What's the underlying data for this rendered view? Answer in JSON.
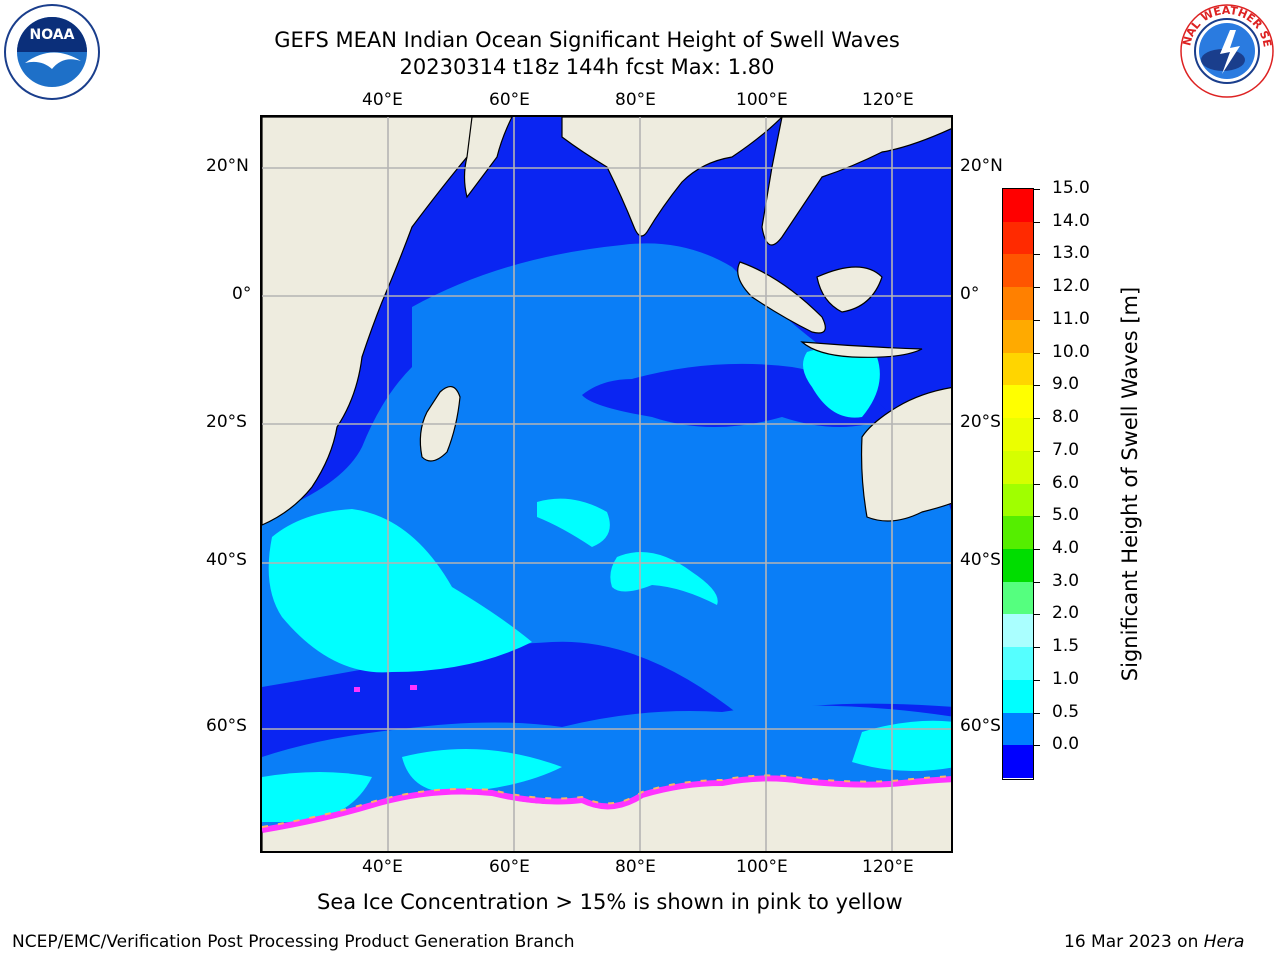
{
  "title": {
    "line1": "GEFS MEAN Indian Ocean Significant Height of Swell Waves",
    "line2": "20230314 t18z 144h fcst   Max: 1.80"
  },
  "map": {
    "projection": "cylindrical",
    "lon_ticks": [
      "40°E",
      "60°E",
      "80°E",
      "100°E",
      "120°E"
    ],
    "lat_ticks": [
      "20°N",
      "0°",
      "20°S",
      "40°S",
      "60°S"
    ],
    "land_color": "#eeecdf",
    "sea_ice_colors": [
      "#ff33ff",
      "#ffb266",
      "#ffff66"
    ],
    "max_value": 1.8
  },
  "colorbar": {
    "title": "Significant Height of Swell Waves [m]",
    "labels": [
      "15.0",
      "14.0",
      "13.0",
      "12.0",
      "11.0",
      "10.0",
      "9.0",
      "8.0",
      "7.0",
      "6.0",
      "5.0",
      "4.0",
      "3.0",
      "2.0",
      "1.5",
      "1.0",
      "0.5",
      "0.0"
    ],
    "colors_top_to_bottom": [
      "#ff0000",
      "#ff2a00",
      "#ff5500",
      "#ff8000",
      "#ffaa00",
      "#ffd500",
      "#ffff00",
      "#ebff00",
      "#d5ff00",
      "#a0ff00",
      "#55ee00",
      "#00dd00",
      "#55ff7f",
      "#aaffff",
      "#55ffff",
      "#00ffff",
      "#0080ff",
      "#0000ff"
    ]
  },
  "caption": "Sea Ice Concentration > 15% is shown in pink to yellow",
  "footer": {
    "left": "NCEP/EMC/Verification Post Processing Product Generation Branch",
    "right_date": "16 Mar 2023 on ",
    "right_system": "Hera"
  },
  "logos": {
    "noaa": "NOAA",
    "nws": "NATIONAL WEATHER SERVICE"
  }
}
